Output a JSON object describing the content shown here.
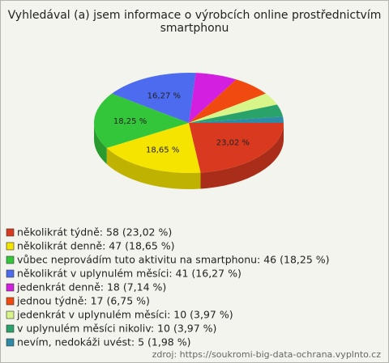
{
  "chart_data": {
    "type": "pie",
    "title": "Vyhledával (a) jsem informace o výrobcích online prostřednictvím smartphonu",
    "categories": [
      "několikrát týdně: 58 (23,02 %)",
      "několikrát denně: 47 (18,65 %)",
      "vůbec neprovádím tuto aktivitu na smartphonu: 46 (18,25 %)",
      "několikrát v uplynulém měsíci: 41 (16,27 %)",
      "jedenkrát denně: 18 (7,14 %)",
      "jednou týdně: 17 (6,75 %)",
      "jedenkrát v uplynulém měsíci: 10 (3,97 %)",
      "v uplynulém měsíci nikoliv: 10 (3,97 %)",
      "nevím, nedokáži uvést: 5 (1,98 %)"
    ],
    "values": [
      23.02,
      18.65,
      18.25,
      16.27,
      7.14,
      6.75,
      3.97,
      3.97,
      1.98
    ],
    "value_labels": [
      "23,02 %",
      "18,65 %",
      "18,25 %",
      "16,27 %",
      null,
      null,
      null,
      null,
      null
    ],
    "colors": [
      "#d93a1f",
      "#f5e400",
      "#34c63a",
      "#4d6bee",
      "#d21fe0",
      "#f04a10",
      "#d8f58a",
      "#2aa36a",
      "#2f8aa8"
    ],
    "source": "zdroj: https://soukromi-big-data-ochrana.vyplnto.cz"
  }
}
